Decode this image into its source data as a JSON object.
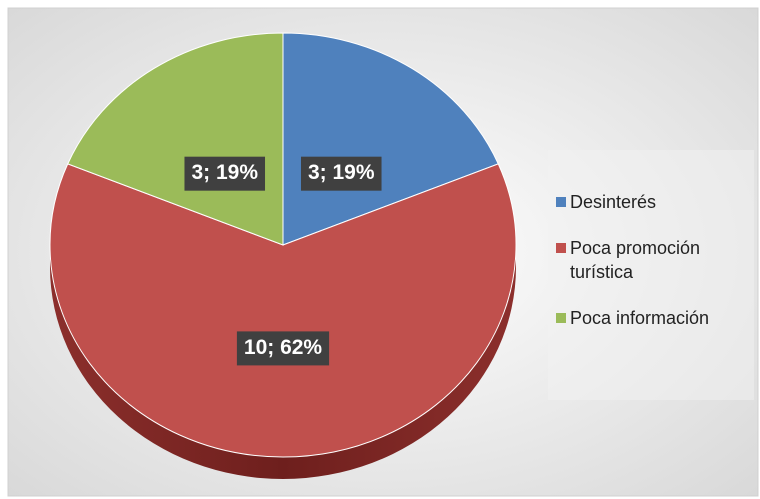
{
  "chart_data": {
    "type": "pie",
    "categories": [
      "Desinterés",
      "Poca promoción turística",
      "Poca información"
    ],
    "values": [
      3,
      10,
      3
    ],
    "value_labels": [
      "3; 19%",
      "10; 62%",
      "3; 19%"
    ],
    "colors": [
      "#4f81bd",
      "#c0504d",
      "#9bbb59"
    ],
    "legend": "right"
  }
}
